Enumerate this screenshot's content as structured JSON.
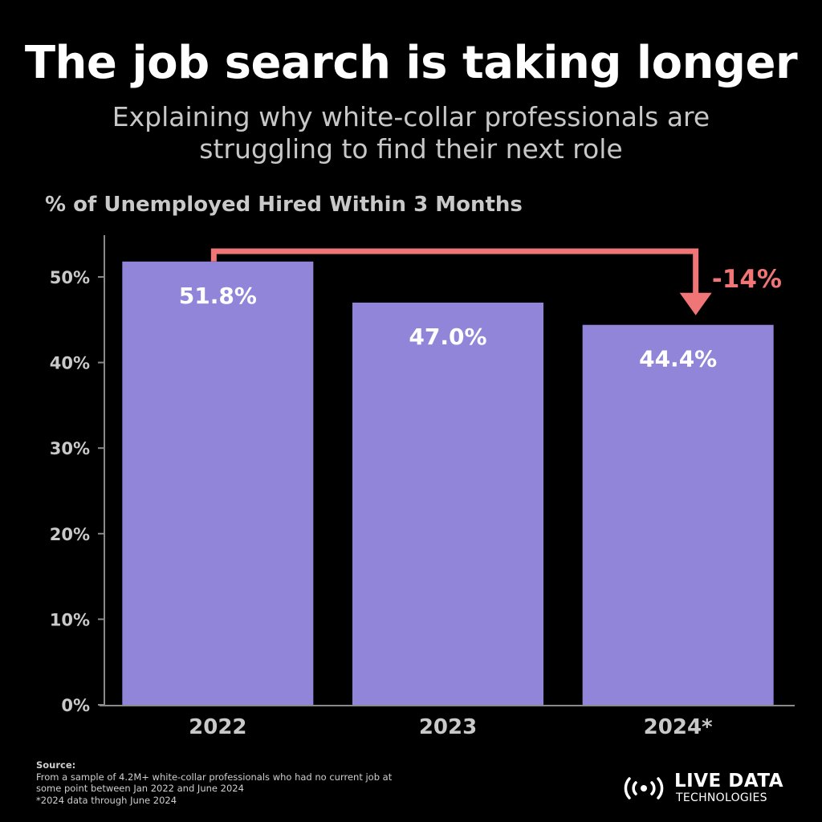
{
  "header": {
    "title": "The job search is taking longer",
    "subtitle_line1": "Explaining why white-collar professionals are",
    "subtitle_line2": "struggling to find their next role"
  },
  "chart_data": {
    "type": "bar",
    "title": "% of Unemployed Hired Within 3 Months",
    "categories": [
      "2022",
      "2023",
      "2024*"
    ],
    "values": [
      51.8,
      47.0,
      44.4
    ],
    "data_labels": [
      "51.8%",
      "47.0%",
      "44.4%"
    ],
    "ylim": [
      0,
      55
    ],
    "yticks": [
      0,
      10,
      20,
      30,
      40,
      50
    ],
    "ytick_labels": [
      "0%",
      "10%",
      "20%",
      "30%",
      "40%",
      "50%"
    ],
    "xlabel": "",
    "ylabel": "",
    "grid": false,
    "bar_color": "#9185d9",
    "annotation": {
      "text": "-14%",
      "from_category": "2022",
      "to_category": "2024*",
      "color": "#f07577"
    }
  },
  "footer": {
    "source_title": "Source:",
    "source_lines": [
      "From a sample of 4.2M+ white-collar professionals who had no current job at",
      "some point between Jan 2022 and June 2024",
      "*2024 data through June 2024"
    ]
  },
  "logo": {
    "name": "LIVE DATA",
    "subname": "TECHNOLOGIES",
    "icon": "broadcast-icon"
  }
}
